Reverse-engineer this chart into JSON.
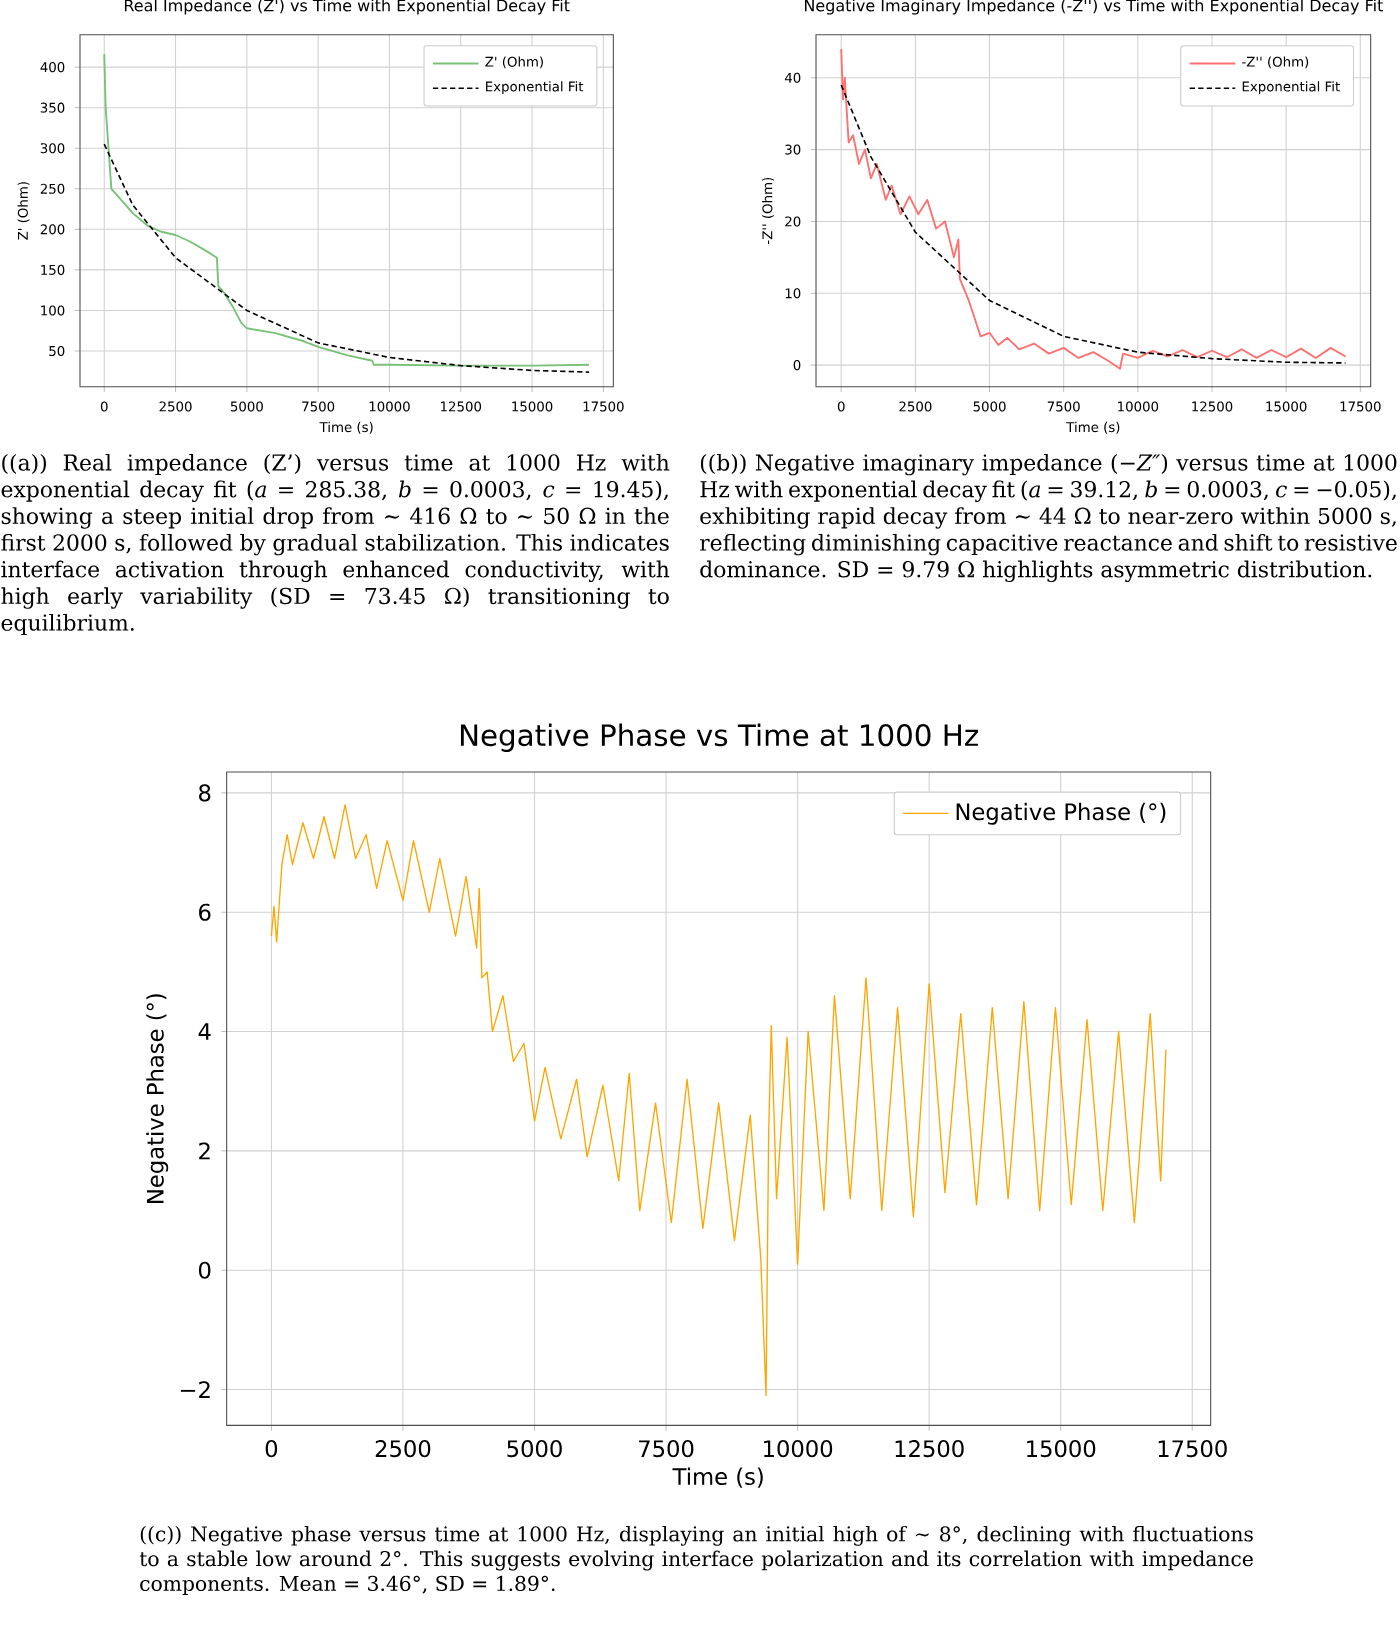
{
  "chart_data": [
    {
      "type": "line",
      "title": "Real Impedance (Z') vs Time with Exponential Decay Fit",
      "xlabel": "Time (s)",
      "ylabel": "Z' (Ohm)",
      "xlim": [
        -850,
        17850
      ],
      "ylim": [
        6,
        440
      ],
      "xticks": [
        0,
        2500,
        5000,
        7500,
        10000,
        12500,
        15000,
        17500
      ],
      "yticks": [
        50,
        100,
        150,
        200,
        250,
        300,
        350,
        400
      ],
      "grid": true,
      "legend": "top right",
      "marker": "none",
      "series": [
        {
          "name": "Z' (Ohm)",
          "color": "#77c277",
          "line_style": "solid",
          "x": [
            0,
            50,
            150,
            250,
            500,
            1000,
            1500,
            2000,
            2500,
            3000,
            3500,
            3950,
            4000,
            4200,
            4500,
            4800,
            5000,
            6000,
            7000,
            7500,
            8500,
            9400,
            9450,
            10000,
            12500,
            15000,
            17000
          ],
          "values": [
            416,
            350,
            300,
            250,
            240,
            220,
            205,
            197,
            193,
            185,
            175,
            165,
            130,
            122,
            105,
            85,
            78,
            72,
            62,
            55,
            45,
            38,
            33,
            33,
            32,
            32,
            33
          ]
        },
        {
          "name": "Exponential Fit",
          "color": "#000000",
          "line_style": "dashed",
          "x": [
            0,
            1000,
            2500,
            5000,
            7500,
            10000,
            12500,
            15000,
            17000
          ],
          "values": [
            305,
            230,
            165,
            100,
            60,
            42,
            32,
            26,
            24
          ]
        }
      ],
      "annotations": [
        "((a)) Real impedance (Z’) versus time at 1000 Hz with exponential decay fit (*a* = 285.38, *b* = 0.0003, *c* = 19.45), showing a steep initial drop from ∼ 416 Ω to ∼ 50 Ω in the first 2000 s, followed by gradual stabilization. This indicates interface activation through enhanced conductivity, with high early variability (SD = 73.45 Ω) transitioning to equilibrium."
      ]
    },
    {
      "type": "line",
      "title": "Negative Imaginary Impedance (-Z'') vs Time with Exponential Decay Fit",
      "xlabel": "Time (s)",
      "ylabel": "-Z'' (Ohm)",
      "xlim": [
        -850,
        17850
      ],
      "ylim": [
        -3,
        46
      ],
      "xticks": [
        0,
        2500,
        5000,
        7500,
        10000,
        12500,
        15000,
        17500
      ],
      "yticks": [
        0,
        10,
        20,
        30,
        40
      ],
      "grid": true,
      "legend": "top right",
      "marker": "none",
      "series": [
        {
          "name": "-Z'' (Ohm)",
          "color": "#ff7070",
          "line_style": "solid",
          "x": [
            0,
            60,
            120,
            250,
            400,
            600,
            800,
            1000,
            1200,
            1500,
            1700,
            2000,
            2300,
            2600,
            2900,
            3200,
            3500,
            3800,
            3950,
            4000,
            4100,
            4300,
            4500,
            4700,
            5000,
            5300,
            5600,
            6000,
            6500,
            7000,
            7500,
            8000,
            8500,
            9000,
            9400,
            9500,
            10000,
            10500,
            11000,
            11500,
            12000,
            12500,
            13000,
            13500,
            14000,
            14500,
            15000,
            15500,
            16000,
            16500,
            17000
          ],
          "values": [
            44,
            37,
            40,
            31,
            32,
            28,
            30,
            26,
            28,
            23,
            25,
            21,
            23.5,
            21,
            23,
            19,
            20,
            15,
            17.5,
            12,
            11,
            9,
            6.5,
            4,
            4.5,
            2.8,
            3.8,
            2.2,
            3,
            1.6,
            2.4,
            1.0,
            1.8,
            0.6,
            -0.5,
            1.6,
            1.0,
            2.0,
            1.2,
            2.1,
            1.1,
            2.0,
            1.1,
            2.2,
            1.0,
            2.1,
            1.1,
            2.3,
            1.0,
            2.4,
            1.2
          ]
        },
        {
          "name": "Exponential Fit",
          "color": "#000000",
          "line_style": "dashed",
          "x": [
            0,
            1000,
            2500,
            5000,
            7500,
            10000,
            12500,
            15000,
            17000
          ],
          "values": [
            39,
            29,
            18.5,
            9,
            4,
            1.8,
            0.9,
            0.4,
            0.3
          ]
        }
      ],
      "annotations": [
        "((b)) Negative imaginary impedance (−*Z″*) versus time at 1000 Hz with exponential decay fit (*a* = 39.12, *b* = 0.0003, *c* = −0.05), exhibiting rapid decay from ∼ 44 Ω to near-zero within 5000 s, reflecting diminishing capacitive reactance and shift to resistive dominance. SD = 9.79 Ω highlights asymmetric distribution."
      ]
    },
    {
      "type": "line",
      "title": "Negative Phase vs Time at 1000 Hz",
      "xlabel": "Time (s)",
      "ylabel": "Negative Phase (°)",
      "xlim": [
        -850,
        17850
      ],
      "ylim": [
        -2.6,
        8.35
      ],
      "xticks": [
        0,
        2500,
        5000,
        7500,
        10000,
        12500,
        15000,
        17500
      ],
      "yticks": [
        {
          "value": -2,
          "label": "−2"
        },
        0,
        2,
        4,
        6,
        8
      ],
      "grid": true,
      "legend": "top right",
      "marker": "none",
      "series": [
        {
          "name": "Negative Phase (°)",
          "color": "#ffa500",
          "line_style": "solid",
          "x": [
            0,
            50,
            100,
            200,
            300,
            400,
            600,
            800,
            1000,
            1200,
            1400,
            1600,
            1800,
            2000,
            2200,
            2500,
            2700,
            3000,
            3200,
            3500,
            3700,
            3900,
            3950,
            4000,
            4100,
            4200,
            4400,
            4600,
            4800,
            5000,
            5200,
            5500,
            5800,
            6000,
            6300,
            6600,
            6800,
            7000,
            7300,
            7600,
            7900,
            8200,
            8500,
            8800,
            9100,
            9300,
            9400,
            9450,
            9500,
            9600,
            9800,
            10000,
            10200,
            10500,
            10700,
            11000,
            11300,
            11600,
            11900,
            12200,
            12500,
            12800,
            13100,
            13400,
            13700,
            14000,
            14300,
            14600,
            14900,
            15200,
            15500,
            15800,
            16100,
            16400,
            16700,
            16900,
            17000
          ],
          "values": [
            5.6,
            6.1,
            5.5,
            6.8,
            7.3,
            6.8,
            7.5,
            6.9,
            7.6,
            6.9,
            7.8,
            6.9,
            7.3,
            6.4,
            7.2,
            6.2,
            7.2,
            6.0,
            6.9,
            5.6,
            6.6,
            5.4,
            6.4,
            4.9,
            5.0,
            4.0,
            4.6,
            3.5,
            3.8,
            2.5,
            3.4,
            2.2,
            3.2,
            1.9,
            3.1,
            1.5,
            3.3,
            1.0,
            2.8,
            0.8,
            3.2,
            0.7,
            2.8,
            0.5,
            2.6,
            0.2,
            -2.1,
            2.3,
            4.1,
            1.2,
            3.9,
            0.1,
            4.0,
            1.0,
            4.6,
            1.2,
            4.9,
            1.0,
            4.4,
            0.9,
            4.8,
            1.3,
            4.3,
            1.1,
            4.4,
            1.2,
            4.5,
            1.0,
            4.4,
            1.1,
            4.2,
            1.0,
            4.0,
            0.8,
            4.3,
            1.5,
            3.7
          ]
        }
      ],
      "annotations": [
        "((c)) Negative phase versus time at 1000 Hz, displaying an initial high of ∼ 8°, declining with fluctuations to a stable low around 2°. This suggests evolving interface polarization and its correlation with impedance components. Mean = 3.46°, SD = 1.89°."
      ]
    }
  ]
}
